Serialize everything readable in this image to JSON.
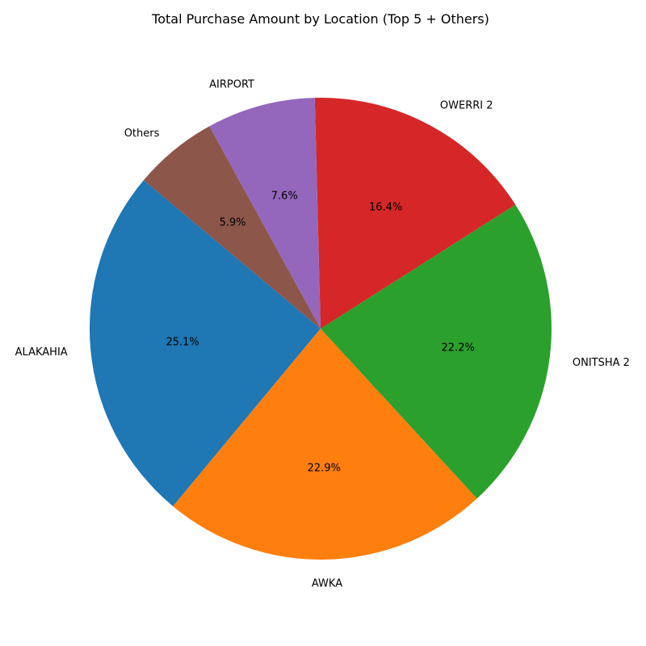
{
  "chart_data": {
    "type": "pie",
    "title": "Total Purchase Amount by Location (Top 5 + Others)",
    "start_angle_deg": 140,
    "direction": "counterclockwise",
    "slices": [
      {
        "label": "ALAKAHIA",
        "value": 25.1,
        "pct_text": "25.1%",
        "color": "#1f77b4"
      },
      {
        "label": "AWKA",
        "value": 22.9,
        "pct_text": "22.9%",
        "color": "#ff7f0e"
      },
      {
        "label": "ONITSHA 2",
        "value": 22.2,
        "pct_text": "22.2%",
        "color": "#2ca02c"
      },
      {
        "label": "OWERRI 2",
        "value": 16.4,
        "pct_text": "16.4%",
        "color": "#d62728"
      },
      {
        "label": "AIRPORT",
        "value": 7.6,
        "pct_text": "7.6%",
        "color": "#9467bd"
      },
      {
        "label": "Others",
        "value": 5.9,
        "pct_text": "5.9%",
        "color": "#8c564b"
      }
    ]
  }
}
